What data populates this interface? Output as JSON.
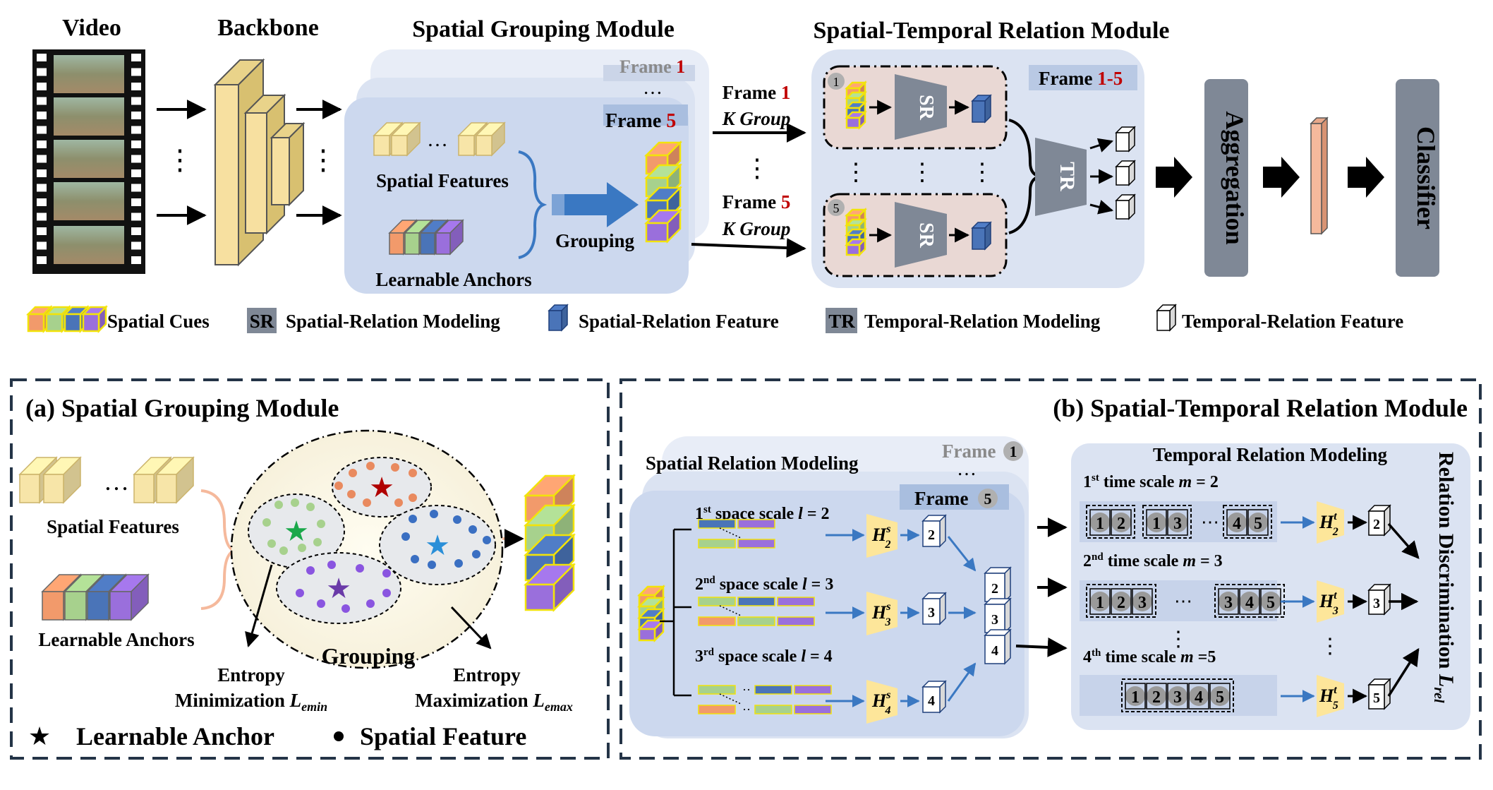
{
  "top": {
    "titles": {
      "video": "Video",
      "backbone": "Backbone",
      "sgm": "Spatial Grouping Module",
      "strm": "Spatial-Temporal Relation Module"
    },
    "sgm": {
      "frame_back": {
        "word": "Frame",
        "num": "1"
      },
      "frame_front": {
        "word": "Frame",
        "num": "5"
      },
      "spatial_features": "Spatial Features",
      "learnable_anchors": "Learnable Anchors",
      "grouping": "Grouping",
      "dots": "…",
      "vdots": "⋯"
    },
    "mid": {
      "frame1": {
        "word": "Frame",
        "num": "1"
      },
      "frame5": {
        "word": "Frame",
        "num": "5"
      },
      "k_group": "K Group",
      "vdots": "⋮"
    },
    "strm": {
      "frames_label": {
        "word": "Frame",
        "num": "1-5"
      },
      "sr": "SR",
      "tr": "TR",
      "badge1": "1",
      "badge5": "5"
    },
    "aggregation": "Aggregation",
    "classifier": "Classifier"
  },
  "legend": {
    "spatial_cues": "Spatial Cues",
    "sr_tag": "SR",
    "sr_label": "Spatial-Relation Modeling",
    "sr_feature": "Spatial-Relation Feature",
    "tr_tag": "TR",
    "tr_label": "Temporal-Relation Modeling",
    "tr_feature": "Temporal-Relation Feature"
  },
  "panel_a": {
    "title": "(a) Spatial Grouping Module",
    "spatial_features": "Spatial Features",
    "learnable_anchors": "Learnable Anchors",
    "dots": "…",
    "grouping": "Grouping",
    "entropy_min_1": "Entropy",
    "entropy_min_2": "Minimization",
    "entropy_min_sym": "L",
    "entropy_min_sub": "emin",
    "entropy_max_1": "Entropy",
    "entropy_max_2": "Maximization",
    "entropy_max_sym": "L",
    "entropy_max_sub": "emax",
    "legend_anchor": "Learnable Anchor",
    "legend_feature": "Spatial Feature",
    "star": "★",
    "dot": "●"
  },
  "panel_b": {
    "title": "(b) Spatial-Temporal Relation Module",
    "srm_title": "Spatial Relation Modeling",
    "frame_back": {
      "word": "Frame",
      "num": "1"
    },
    "frame_front": {
      "word": "Frame",
      "num": "5"
    },
    "space_scales": [
      {
        "ord": "1",
        "sup": "st",
        "text": "space scale",
        "var": "l",
        "val": "= 2",
        "h_sub": "2",
        "feat": "2"
      },
      {
        "ord": "2",
        "sup": "nd",
        "text": "space scale",
        "var": "l",
        "val": "= 3",
        "h_sub": "3",
        "feat": "3"
      },
      {
        "ord": "3",
        "sup": "rd",
        "text": "space scale",
        "var": "l",
        "val": "= 4",
        "h_sub": "4",
        "feat": "4"
      }
    ],
    "trm_title": "Temporal Relation Modeling",
    "time_scales": [
      {
        "ord": "1",
        "sup": "st",
        "text": "time scale",
        "var": "m",
        "val": "= 2",
        "h_sub": "2",
        "out": "2",
        "groups": [
          [
            "1",
            "2"
          ],
          [
            "1",
            "3"
          ],
          [
            "4",
            "5"
          ]
        ]
      },
      {
        "ord": "2",
        "sup": "nd",
        "text": "time scale",
        "var": "m",
        "val": "= 3",
        "h_sub": "3",
        "out": "3",
        "groups": [
          [
            "1",
            "2",
            "3"
          ],
          [
            "3",
            "4",
            "5"
          ]
        ]
      },
      {
        "ord": "4",
        "sup": "th",
        "text": "time scale",
        "var": "m",
        "val": "=5",
        "h_sub": "5",
        "out": "5",
        "groups": [
          [
            "1",
            "2",
            "3",
            "4",
            "5"
          ]
        ]
      }
    ],
    "h_symbol": "H",
    "h_sup_s": "s",
    "h_sup_t": "t",
    "relation_label": "Relation Discrimination",
    "relation_sym": "L",
    "relation_sub": "rel",
    "dots": "⋯"
  },
  "colors": {
    "bg_panel": "#dbe3f2",
    "bg_panel_front": "#ccd8ee",
    "yellow": "#f7e5a8",
    "yellow_side": "#e9d38a",
    "orange": "#f29a6b",
    "green": "#a7d18d",
    "blue": "#4a74b8",
    "purple": "#9a6fdc",
    "gray_block": "#7f8896",
    "salmon": "#f5b99c",
    "red_num": "#c00000",
    "arrow_blue": "#3a78c2",
    "dark_blue": "#1f3f7a"
  }
}
